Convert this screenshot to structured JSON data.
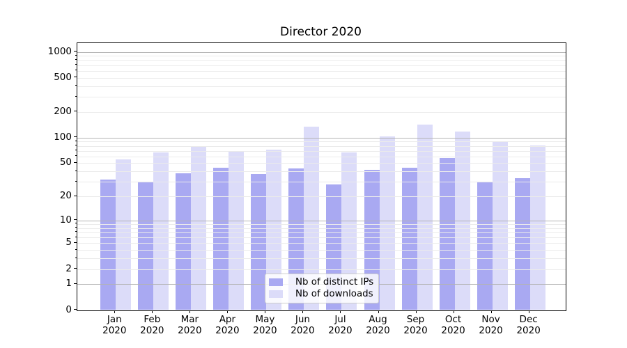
{
  "chart_data": {
    "type": "bar",
    "title": "Director 2020",
    "categories": [
      "Jan",
      "Feb",
      "Mar",
      "Apr",
      "May",
      "Jun",
      "Jul",
      "Aug",
      "Sep",
      "Oct",
      "Nov",
      "Dec"
    ],
    "x_year_label": "2020",
    "series": [
      {
        "name": "Nb of distinct IPs",
        "color": "#a9a9f2",
        "values": [
          32,
          30,
          38,
          44,
          37,
          43,
          28,
          42,
          44,
          57,
          30,
          33
        ]
      },
      {
        "name": "Nb of downloads",
        "color": "#dcdcf9",
        "values": [
          55,
          67,
          79,
          69,
          72,
          135,
          67,
          103,
          142,
          118,
          88,
          81
        ]
      }
    ],
    "xlabel": "",
    "ylabel": "",
    "y_scale": "log1p",
    "ylim": [
      0,
      1263
    ],
    "y_ticks": [
      0,
      1,
      2,
      5,
      10,
      20,
      50,
      100,
      200,
      500,
      1000
    ],
    "y_major_gridlines": [
      1,
      10,
      100,
      1000
    ],
    "grid": true,
    "legend_position": "lower-center",
    "colors": {
      "major_grid": "#b3b3b3",
      "minor_grid": "#ebebeb",
      "spine": "#000000",
      "text": "#000000",
      "legend_border": "#cccccc"
    }
  }
}
